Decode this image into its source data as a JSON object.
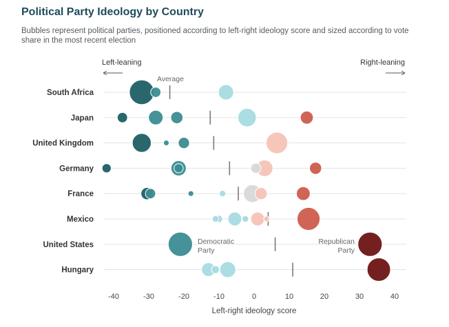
{
  "chart_data": {
    "type": "scatter",
    "title": "Political Party Ideology by Country",
    "subtitle": "Bubbles represent political parties, positioned according to left-right ideology score and sized according to vote share in the most recent election",
    "xlabel": "Left-right ideology score",
    "left_label": "Left-leaning",
    "right_label": "Right-leaning",
    "xlim": [
      -43,
      42
    ],
    "xticks": [
      -40,
      -30,
      -20,
      -10,
      0,
      10,
      20,
      30,
      40
    ],
    "grid": true,
    "annotations": {
      "average": "Average",
      "democratic": [
        "Democratic",
        "Party"
      ],
      "republican": [
        "Republican",
        "Party"
      ]
    },
    "colors": {
      "left_dark": "#1e5f64",
      "left_mid": "#3b8c92",
      "left_light": "#a7dbe0",
      "neutral": "#d8d8d8",
      "right_light": "#f6c3b6",
      "right_mid": "#cd5d4c",
      "right_dark": "#6e1414"
    },
    "countries": [
      {
        "name": "South Africa",
        "average": -24,
        "parties": [
          {
            "x": -32,
            "size": 58
          },
          {
            "x": -28,
            "size": 10
          },
          {
            "x": -8,
            "size": 22
          }
        ]
      },
      {
        "name": "Japan",
        "average": -12.5,
        "parties": [
          {
            "x": -37.5,
            "size": 10
          },
          {
            "x": -28,
            "size": 20
          },
          {
            "x": -22,
            "size": 14
          },
          {
            "x": -2,
            "size": 32
          },
          {
            "x": 15,
            "size": 16
          }
        ]
      },
      {
        "name": "United Kingdom",
        "average": -11.5,
        "parties": [
          {
            "x": -32,
            "size": 34
          },
          {
            "x": -25,
            "size": 3
          },
          {
            "x": -20,
            "size": 12
          },
          {
            "x": 6.5,
            "size": 44
          }
        ]
      },
      {
        "name": "Germany",
        "average": -7,
        "parties": [
          {
            "x": -42,
            "size": 8
          },
          {
            "x": -21.5,
            "size": 22
          },
          {
            "x": -21.5,
            "size": 8
          },
          {
            "x": 0.5,
            "size": 10
          },
          {
            "x": 3,
            "size": 26
          },
          {
            "x": 17.5,
            "size": 14
          }
        ]
      },
      {
        "name": "France",
        "average": -4.5,
        "parties": [
          {
            "x": -30.5,
            "size": 14
          },
          {
            "x": -29.5,
            "size": 10
          },
          {
            "x": -18,
            "size": 3
          },
          {
            "x": -9,
            "size": 4
          },
          {
            "x": -0.5,
            "size": 30
          },
          {
            "x": 2,
            "size": 14
          },
          {
            "x": 14,
            "size": 18
          }
        ]
      },
      {
        "name": "Mexico",
        "average": 4,
        "parties": [
          {
            "x": -11,
            "size": 4
          },
          {
            "x": -10,
            "size": 5
          },
          {
            "x": -5.5,
            "size": 18
          },
          {
            "x": -2.5,
            "size": 4
          },
          {
            "x": 1,
            "size": 18
          },
          {
            "x": 3.5,
            "size": 3
          },
          {
            "x": 15.5,
            "size": 50
          }
        ]
      },
      {
        "name": "United States",
        "average": 6,
        "parties": [
          {
            "x": -21,
            "size": 56
          },
          {
            "x": 33,
            "size": 56
          }
        ]
      },
      {
        "name": "Hungary",
        "average": 11,
        "parties": [
          {
            "x": -13,
            "size": 18
          },
          {
            "x": -11,
            "size": 6
          },
          {
            "x": -7.5,
            "size": 24
          },
          {
            "x": 35.5,
            "size": 52
          }
        ]
      }
    ]
  }
}
